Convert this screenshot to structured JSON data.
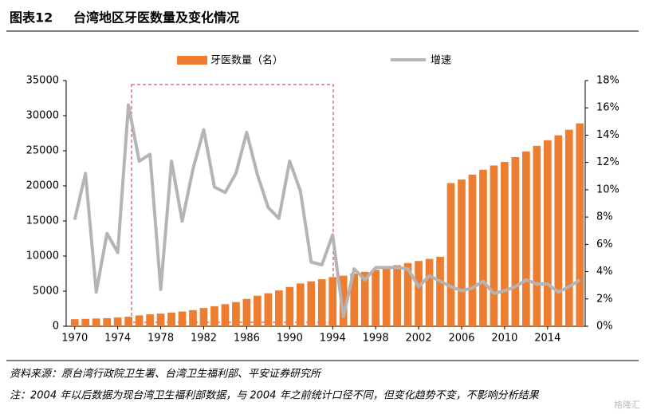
{
  "header": {
    "label": "图表12",
    "title": "台湾地区牙医数量及变化情况"
  },
  "chart_data": {
    "type": "bar-line",
    "categories": [
      "1970",
      null,
      null,
      null,
      "1974",
      null,
      null,
      null,
      "1978",
      null,
      null,
      null,
      "1982",
      null,
      null,
      null,
      "1986",
      null,
      null,
      null,
      "1990",
      null,
      null,
      null,
      "1994",
      null,
      null,
      null,
      "1998",
      null,
      null,
      null,
      "2002",
      null,
      null,
      null,
      "2006",
      null,
      null,
      null,
      "2010",
      null,
      null,
      null,
      "2014",
      null,
      null,
      null
    ],
    "series": [
      {
        "name": "牙医数量（名）",
        "color": "#ed7d31",
        "kind": "bar",
        "values": [
          1000,
          1050,
          1100,
          1150,
          1250,
          1350,
          1550,
          1700,
          1800,
          1950,
          2100,
          2300,
          2600,
          2850,
          3150,
          3450,
          3900,
          4350,
          4700,
          5100,
          5600,
          6100,
          6400,
          6700,
          7000,
          7200,
          7500,
          7750,
          8050,
          8400,
          8700,
          9000,
          9300,
          9600,
          9900,
          20400,
          20900,
          21600,
          22300,
          22900,
          23400,
          24100,
          24900,
          25700,
          26500,
          27200,
          28000,
          28900
        ]
      },
      {
        "name": "增速",
        "color": "#b4b4b4",
        "kind": "line",
        "axis": "y2",
        "values": [
          7.8,
          11.2,
          2.5,
          6.8,
          5.4,
          16.2,
          12.1,
          12.6,
          2.7,
          12.1,
          7.7,
          11.5,
          14.4,
          10.2,
          9.8,
          11.2,
          14.2,
          11.1,
          8.7,
          7.9,
          12.1,
          9.9,
          4.7,
          4.5,
          6.7,
          0.7,
          4.2,
          3.4,
          4.3,
          4.3,
          4.3,
          4.2,
          2.9,
          3.7,
          3.3,
          2.9,
          2.6,
          2.8,
          3.3,
          2.4,
          2.6,
          2.9,
          3.4,
          3.1,
          3.1,
          2.5,
          2.9,
          3.4
        ]
      }
    ],
    "ylim": [
      0,
      35000
    ],
    "yticks": [
      0,
      5000,
      10000,
      15000,
      20000,
      25000,
      30000,
      35000
    ],
    "y2lim": [
      0,
      18
    ],
    "y2ticks": [
      {
        "value": 0,
        "label": "0%"
      },
      {
        "value": 2,
        "label": "2%"
      },
      {
        "value": 4,
        "label": "4%"
      },
      {
        "value": 6,
        "label": "6%"
      },
      {
        "value": 8,
        "label": "8%"
      },
      {
        "value": 10,
        "label": "10%"
      },
      {
        "value": 12,
        "label": "12%"
      },
      {
        "value": 14,
        "label": "14%"
      },
      {
        "value": 16,
        "label": "16%"
      },
      {
        "value": 18,
        "label": "18%"
      }
    ],
    "legend": "top"
  },
  "footer": {
    "source": "资料来源：原台湾行政院卫生署、台湾卫生福利部、平安证券研究所",
    "note": "注：2004 年以后数据为现台湾卫生福利部数据，与 2004 年之前统计口径不同，但变化趋势不变，不影响分析结果",
    "watermark": "格隆汇"
  }
}
